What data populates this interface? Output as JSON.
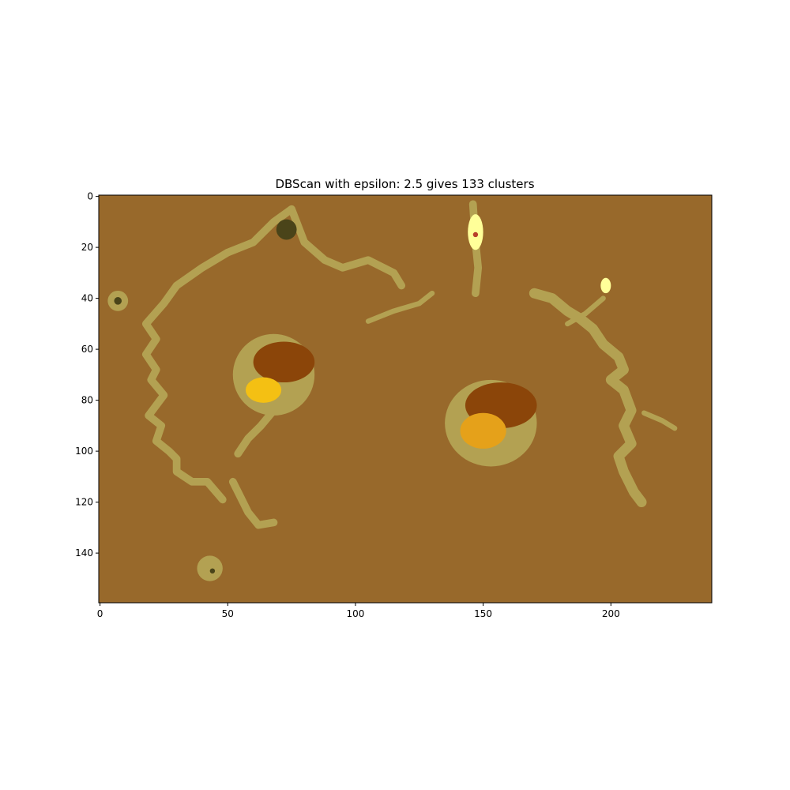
{
  "chart_data": {
    "type": "heatmap",
    "title": "DBScan with epsilon: 2.5 gives 133 clusters",
    "xlabel": "",
    "ylabel": "",
    "image_size": {
      "width": 240,
      "height": 160
    },
    "xlim": [
      -0.5,
      239.5
    ],
    "ylim": [
      159.5,
      -0.5
    ],
    "xticks": [
      0,
      50,
      100,
      150,
      200
    ],
    "yticks": [
      0,
      20,
      40,
      60,
      80,
      100,
      120,
      140
    ],
    "grid": false,
    "legend": "none",
    "colors": {
      "background_cluster": "#98692b",
      "edge_cluster": "#b3a152",
      "dark_cluster": "#8b4509",
      "orange_cluster": "#e5a11a",
      "gold_cluster": "#f4c013",
      "dark_olive": "#4a4419",
      "pale_yellow": "#ffff99",
      "red_noise": "#b8402a"
    },
    "regions": [
      {
        "kind": "ellipse",
        "color": "edge_cluster",
        "cx": 68,
        "cy": 70,
        "rx": 16,
        "ry": 16
      },
      {
        "kind": "ellipse",
        "color": "dark_cluster",
        "cx": 72,
        "cy": 65,
        "rx": 12,
        "ry": 8
      },
      {
        "kind": "ellipse",
        "color": "gold_cluster",
        "cx": 64,
        "cy": 76,
        "rx": 7,
        "ry": 5
      },
      {
        "kind": "ellipse",
        "color": "edge_cluster",
        "cx": 153,
        "cy": 89,
        "rx": 18,
        "ry": 17
      },
      {
        "kind": "ellipse",
        "color": "dark_cluster",
        "cx": 157,
        "cy": 82,
        "rx": 14,
        "ry": 9
      },
      {
        "kind": "ellipse",
        "color": "orange_cluster",
        "cx": 150,
        "cy": 92,
        "rx": 9,
        "ry": 7
      },
      {
        "kind": "ellipse",
        "color": "edge_cluster",
        "cx": 43,
        "cy": 146,
        "rx": 5,
        "ry": 5
      },
      {
        "kind": "ellipse",
        "color": "dark_olive",
        "cx": 44,
        "cy": 147,
        "rx": 1,
        "ry": 1
      },
      {
        "kind": "ellipse",
        "color": "edge_cluster",
        "cx": 7,
        "cy": 41,
        "rx": 4,
        "ry": 4
      },
      {
        "kind": "ellipse",
        "color": "dark_olive",
        "cx": 7,
        "cy": 41,
        "rx": 1.5,
        "ry": 1.5
      },
      {
        "kind": "ellipse",
        "color": "pale_yellow",
        "cx": 147,
        "cy": 14,
        "rx": 3,
        "ry": 7
      },
      {
        "kind": "ellipse",
        "color": "red_noise",
        "cx": 147,
        "cy": 15,
        "rx": 1,
        "ry": 1
      },
      {
        "kind": "ellipse",
        "color": "pale_yellow",
        "cx": 198,
        "cy": 35,
        "rx": 2,
        "ry": 3
      },
      {
        "kind": "ellipse",
        "color": "dark_olive",
        "cx": 73,
        "cy": 13,
        "rx": 4,
        "ry": 4
      }
    ],
    "paths": [
      {
        "color": "edge_cluster",
        "width": 3,
        "points": [
          [
            30,
            35
          ],
          [
            40,
            28
          ],
          [
            50,
            22
          ],
          [
            60,
            18
          ],
          [
            68,
            10
          ],
          [
            75,
            5
          ],
          [
            80,
            18
          ],
          [
            88,
            25
          ],
          [
            95,
            28
          ],
          [
            105,
            25
          ],
          [
            115,
            30
          ],
          [
            118,
            35
          ]
        ]
      },
      {
        "color": "edge_cluster",
        "width": 3,
        "points": [
          [
            30,
            35
          ],
          [
            25,
            42
          ],
          [
            18,
            50
          ],
          [
            22,
            56
          ],
          [
            18,
            62
          ],
          [
            22,
            68
          ],
          [
            20,
            72
          ],
          [
            25,
            78
          ],
          [
            19,
            86
          ],
          [
            24,
            90
          ],
          [
            22,
            96
          ],
          [
            27,
            100
          ],
          [
            30,
            103
          ],
          [
            30,
            108
          ],
          [
            36,
            112
          ],
          [
            42,
            112
          ],
          [
            48,
            119
          ]
        ]
      },
      {
        "color": "edge_cluster",
        "width": 3,
        "points": [
          [
            52,
            112
          ],
          [
            55,
            118
          ],
          [
            58,
            124
          ],
          [
            62,
            129
          ],
          [
            68,
            128
          ]
        ]
      },
      {
        "color": "edge_cluster",
        "width": 3,
        "points": [
          [
            68,
            84
          ],
          [
            63,
            90
          ],
          [
            58,
            95
          ],
          [
            54,
            101
          ]
        ]
      },
      {
        "color": "edge_cluster",
        "width": 3,
        "points": [
          [
            146,
            3
          ],
          [
            147,
            18
          ],
          [
            148,
            28
          ],
          [
            147,
            38
          ]
        ]
      },
      {
        "color": "edge_cluster",
        "width": 4,
        "points": [
          [
            170,
            38
          ],
          [
            177,
            40
          ],
          [
            183,
            45
          ],
          [
            188,
            48
          ],
          [
            193,
            52
          ],
          [
            197,
            58
          ],
          [
            203,
            63
          ],
          [
            205,
            68
          ],
          [
            200,
            72
          ],
          [
            205,
            76
          ],
          [
            208,
            84
          ],
          [
            205,
            90
          ],
          [
            208,
            97
          ],
          [
            203,
            102
          ],
          [
            205,
            108
          ],
          [
            209,
            116
          ],
          [
            212,
            120
          ]
        ]
      },
      {
        "color": "edge_cluster",
        "width": 2,
        "points": [
          [
            197,
            40
          ],
          [
            190,
            46
          ],
          [
            183,
            50
          ]
        ]
      },
      {
        "color": "edge_cluster",
        "width": 2,
        "points": [
          [
            105,
            49
          ],
          [
            115,
            45
          ],
          [
            125,
            42
          ],
          [
            130,
            38
          ]
        ]
      },
      {
        "color": "edge_cluster",
        "width": 2,
        "points": [
          [
            213,
            85
          ],
          [
            220,
            88
          ],
          [
            225,
            91
          ]
        ]
      }
    ]
  }
}
